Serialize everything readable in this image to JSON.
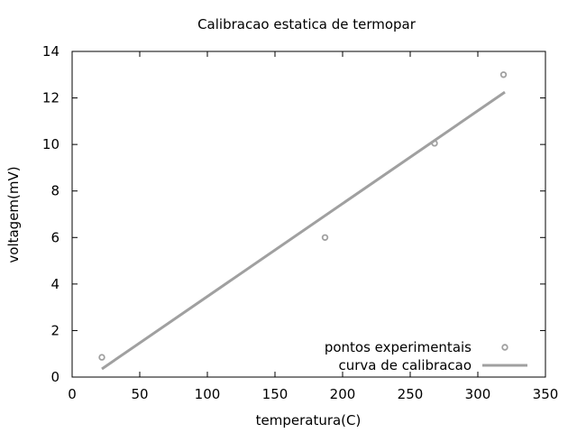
{
  "chart_data": {
    "type": "scatter",
    "title": "Calibracao estatica de termopar",
    "xlabel": "temperatura(C)",
    "ylabel": "voltagem(mV)",
    "xlim": [
      0,
      350
    ],
    "ylim": [
      0,
      14
    ],
    "x_ticks": [
      "0",
      "50",
      "100",
      "150",
      "200",
      "250",
      "300",
      "350"
    ],
    "y_ticks": [
      "0",
      "2",
      "4",
      "6",
      "8",
      "10",
      "12",
      "14"
    ],
    "grid": false,
    "legend_position": "bottom-right",
    "series": [
      {
        "name": "pontos experimentais",
        "kind": "points",
        "color": "#a0a0a0",
        "x": [
          22,
          187,
          268,
          319
        ],
        "y": [
          0.85,
          6.0,
          10.05,
          13.0
        ]
      },
      {
        "name": "curva de calibracao",
        "kind": "line",
        "color": "#a0a0a0",
        "x": [
          22,
          320
        ],
        "y": [
          0.35,
          12.25
        ]
      }
    ]
  }
}
